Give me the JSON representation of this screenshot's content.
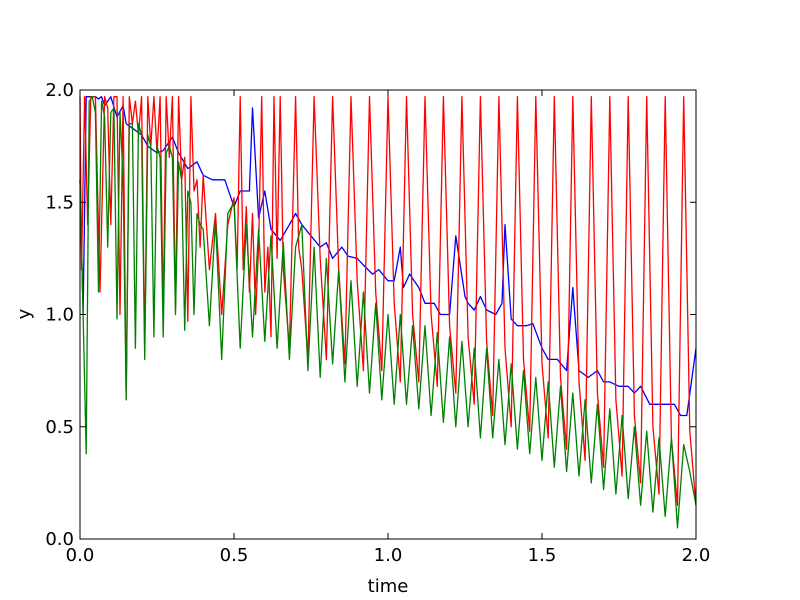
{
  "chart_data": {
    "type": "line",
    "title": "",
    "xlabel": "time",
    "ylabel": "y",
    "xlim": [
      0.0,
      2.0
    ],
    "ylim": [
      0.0,
      2.0
    ],
    "xticks": [
      0.0,
      0.5,
      1.0,
      1.5,
      2.0
    ],
    "yticks": [
      0.0,
      0.5,
      1.0,
      1.5,
      2.0
    ],
    "xtick_labels": [
      "0.0",
      "0.5",
      "1.0",
      "1.5",
      "2.0"
    ],
    "ytick_labels": [
      "0.0",
      "0.5",
      "1.0",
      "1.5",
      "2.0"
    ],
    "grid": false,
    "legend": "none",
    "series": [
      {
        "color": "#0000ff",
        "x": [
          0.0,
          0.01,
          0.02,
          0.03,
          0.04,
          0.05,
          0.06,
          0.07,
          0.08,
          0.1,
          0.12,
          0.14,
          0.15,
          0.17,
          0.2,
          0.22,
          0.25,
          0.27,
          0.3,
          0.32,
          0.35,
          0.38,
          0.4,
          0.43,
          0.45,
          0.47,
          0.5,
          0.52,
          0.55,
          0.56,
          0.58,
          0.6,
          0.62,
          0.65,
          0.68,
          0.7,
          0.72,
          0.75,
          0.78,
          0.8,
          0.82,
          0.85,
          0.87,
          0.9,
          0.92,
          0.95,
          0.97,
          1.0,
          1.02,
          1.04,
          1.05,
          1.07,
          1.1,
          1.12,
          1.15,
          1.17,
          1.2,
          1.22,
          1.25,
          1.26,
          1.28,
          1.3,
          1.32,
          1.35,
          1.37,
          1.38,
          1.4,
          1.42,
          1.45,
          1.47,
          1.5,
          1.52,
          1.55,
          1.58,
          1.6,
          1.62,
          1.65,
          1.68,
          1.7,
          1.72,
          1.75,
          1.78,
          1.8,
          1.82,
          1.85,
          1.88,
          1.9,
          1.93,
          1.95,
          1.97,
          2.0
        ],
        "y": [
          1.6,
          1.0,
          1.97,
          1.97,
          1.97,
          1.97,
          1.96,
          1.97,
          1.93,
          1.97,
          1.88,
          1.93,
          1.85,
          1.83,
          1.8,
          1.75,
          1.72,
          1.73,
          1.79,
          1.72,
          1.65,
          1.68,
          1.62,
          1.6,
          1.6,
          1.6,
          1.48,
          1.55,
          1.55,
          1.92,
          1.43,
          1.55,
          1.38,
          1.33,
          1.4,
          1.45,
          1.4,
          1.35,
          1.3,
          1.32,
          1.25,
          1.3,
          1.26,
          1.25,
          1.22,
          1.18,
          1.2,
          1.15,
          1.15,
          1.3,
          1.12,
          1.18,
          1.12,
          1.05,
          1.05,
          1.0,
          1.0,
          1.35,
          1.08,
          1.05,
          1.02,
          1.08,
          1.02,
          1.0,
          1.05,
          1.4,
          0.98,
          0.95,
          0.95,
          0.96,
          0.85,
          0.8,
          0.8,
          0.75,
          1.12,
          0.75,
          0.72,
          0.75,
          0.7,
          0.7,
          0.68,
          0.68,
          0.65,
          0.68,
          0.6,
          0.6,
          0.6,
          0.6,
          0.55,
          0.55,
          0.85
        ]
      },
      {
        "color": "#ff0000",
        "x": [
          0.0,
          0.005,
          0.015,
          0.025,
          0.035,
          0.05,
          0.065,
          0.08,
          0.09,
          0.1,
          0.11,
          0.12,
          0.13,
          0.14,
          0.15,
          0.16,
          0.17,
          0.18,
          0.19,
          0.2,
          0.21,
          0.22,
          0.23,
          0.24,
          0.25,
          0.26,
          0.27,
          0.28,
          0.29,
          0.3,
          0.31,
          0.32,
          0.33,
          0.34,
          0.35,
          0.36,
          0.37,
          0.38,
          0.39,
          0.4,
          0.42,
          0.44,
          0.46,
          0.48,
          0.5,
          0.51,
          0.52,
          0.53,
          0.54,
          0.55,
          0.56,
          0.57,
          0.58,
          0.59,
          0.6,
          0.61,
          0.62,
          0.63,
          0.64,
          0.65,
          0.66,
          0.68,
          0.7,
          0.71,
          0.72,
          0.74,
          0.76,
          0.78,
          0.8,
          0.82,
          0.84,
          0.86,
          0.88,
          0.9,
          0.92,
          0.94,
          0.96,
          0.98,
          1.0,
          1.02,
          1.04,
          1.06,
          1.08,
          1.1,
          1.12,
          1.14,
          1.16,
          1.18,
          1.2,
          1.22,
          1.24,
          1.26,
          1.28,
          1.3,
          1.32,
          1.34,
          1.36,
          1.38,
          1.4,
          1.42,
          1.44,
          1.46,
          1.48,
          1.5,
          1.52,
          1.54,
          1.56,
          1.58,
          1.6,
          1.62,
          1.64,
          1.66,
          1.68,
          1.7,
          1.72,
          1.74,
          1.76,
          1.78,
          1.8,
          1.82,
          1.84,
          1.86,
          1.88,
          1.9,
          1.92,
          1.94,
          1.96,
          1.98,
          2.0
        ],
        "y": [
          1.97,
          1.2,
          1.97,
          1.4,
          1.97,
          1.97,
          1.1,
          1.97,
          1.92,
          1.4,
          1.97,
          1.97,
          1.0,
          1.97,
          0.62,
          1.97,
          1.85,
          1.95,
          1.8,
          1.97,
          0.85,
          1.97,
          1.75,
          1.97,
          1.72,
          1.97,
          1.0,
          1.97,
          1.7,
          1.97,
          1.02,
          1.97,
          1.6,
          1.7,
          0.97,
          1.97,
          1.55,
          1.6,
          1.3,
          1.62,
          1.2,
          1.45,
          1.0,
          1.4,
          1.52,
          1.2,
          1.97,
          1.2,
          1.48,
          1.1,
          1.45,
          1.0,
          1.3,
          1.97,
          1.1,
          1.3,
          0.9,
          1.97,
          1.25,
          1.97,
          1.2,
          0.85,
          1.97,
          1.3,
          1.2,
          0.8,
          1.97,
          1.25,
          0.8,
          1.97,
          1.2,
          0.78,
          1.97,
          1.15,
          0.75,
          1.97,
          1.1,
          0.75,
          1.97,
          1.05,
          0.7,
          1.97,
          1.0,
          0.7,
          1.97,
          1.0,
          0.68,
          1.97,
          0.95,
          0.65,
          1.97,
          0.9,
          0.6,
          1.97,
          0.88,
          0.55,
          1.97,
          0.85,
          0.5,
          1.97,
          0.8,
          0.48,
          1.97,
          0.78,
          0.45,
          1.97,
          0.72,
          0.4,
          1.97,
          0.7,
          0.35,
          1.97,
          0.65,
          0.32,
          1.97,
          0.62,
          0.28,
          1.97,
          0.55,
          0.25,
          1.97,
          0.5,
          0.2,
          1.97,
          0.45,
          0.15,
          1.97,
          0.48,
          0.15
        ]
      },
      {
        "color": "#008000",
        "x": [
          0.0,
          0.01,
          0.02,
          0.03,
          0.04,
          0.05,
          0.06,
          0.07,
          0.08,
          0.09,
          0.1,
          0.11,
          0.12,
          0.13,
          0.14,
          0.15,
          0.16,
          0.17,
          0.18,
          0.19,
          0.2,
          0.21,
          0.22,
          0.23,
          0.24,
          0.25,
          0.26,
          0.27,
          0.28,
          0.29,
          0.3,
          0.31,
          0.32,
          0.33,
          0.34,
          0.35,
          0.36,
          0.37,
          0.38,
          0.39,
          0.4,
          0.42,
          0.44,
          0.46,
          0.48,
          0.5,
          0.52,
          0.54,
          0.56,
          0.58,
          0.6,
          0.62,
          0.64,
          0.66,
          0.68,
          0.7,
          0.72,
          0.74,
          0.76,
          0.78,
          0.8,
          0.82,
          0.84,
          0.86,
          0.88,
          0.9,
          0.92,
          0.94,
          0.96,
          0.98,
          1.0,
          1.02,
          1.04,
          1.06,
          1.08,
          1.1,
          1.12,
          1.14,
          1.16,
          1.18,
          1.2,
          1.22,
          1.24,
          1.26,
          1.28,
          1.3,
          1.32,
          1.34,
          1.36,
          1.38,
          1.4,
          1.42,
          1.44,
          1.46,
          1.48,
          1.5,
          1.52,
          1.54,
          1.56,
          1.58,
          1.6,
          1.62,
          1.64,
          1.66,
          1.68,
          1.7,
          1.72,
          1.74,
          1.76,
          1.78,
          1.8,
          1.82,
          1.84,
          1.86,
          1.88,
          1.9,
          1.92,
          1.94,
          1.96,
          1.98,
          2.0
        ],
        "y": [
          1.6,
          1.0,
          0.38,
          1.95,
          1.97,
          1.9,
          1.1,
          1.95,
          1.88,
          1.3,
          1.9,
          1.92,
          0.98,
          1.9,
          1.6,
          0.62,
          1.85,
          1.85,
          0.85,
          1.85,
          1.8,
          0.8,
          1.8,
          1.75,
          0.9,
          1.75,
          1.7,
          0.9,
          1.72,
          1.75,
          1.7,
          1.0,
          1.68,
          1.6,
          0.93,
          1.55,
          1.5,
          1.0,
          1.45,
          1.4,
          1.38,
          0.95,
          1.42,
          0.8,
          1.45,
          1.5,
          0.85,
          1.4,
          0.9,
          1.38,
          0.88,
          1.35,
          0.85,
          1.32,
          0.8,
          1.3,
          1.4,
          0.75,
          1.3,
          0.72,
          1.25,
          0.78,
          1.2,
          0.7,
          1.15,
          0.68,
          1.1,
          0.65,
          1.05,
          0.62,
          1.0,
          0.6,
          1.0,
          0.6,
          0.95,
          0.58,
          0.95,
          0.55,
          0.92,
          0.52,
          0.9,
          0.5,
          0.88,
          0.5,
          0.85,
          0.45,
          0.85,
          0.45,
          0.8,
          0.42,
          0.78,
          0.4,
          0.75,
          0.38,
          0.72,
          0.35,
          0.7,
          0.32,
          0.68,
          0.3,
          0.65,
          0.28,
          0.62,
          0.25,
          0.6,
          0.22,
          0.58,
          0.2,
          0.55,
          0.18,
          0.5,
          0.15,
          0.48,
          0.12,
          0.45,
          0.1,
          0.45,
          0.05,
          0.42,
          0.3,
          0.15
        ]
      }
    ]
  }
}
